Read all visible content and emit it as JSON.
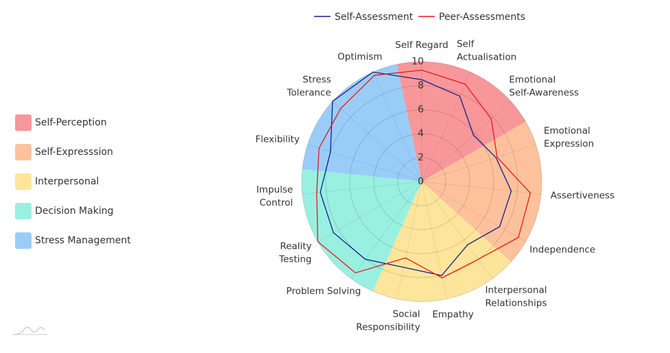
{
  "chart_data": {
    "type": "radar",
    "categories": [
      "Self Regard",
      "Self\nActualisation",
      "Emotional\nSelf-Awareness",
      "Emotional\nExpression",
      "Assertiveness",
      "Independence",
      "Interpersonal\nRelationships",
      "Empathy",
      "Social\nResponsibility",
      "Problem Solving",
      "Reality\nTesting",
      "Impulse\nControl",
      "Flexibility",
      "Stress\nTolerance",
      "Optimism"
    ],
    "series": [
      {
        "name": "Self-Assessment",
        "color": "#1a1a8c",
        "values": [
          8.5,
          7.8,
          5.8,
          6.5,
          7.5,
          7.5,
          6.5,
          8,
          7.3,
          8,
          8.5,
          8.5,
          8,
          10,
          10
        ]
      },
      {
        "name": "Peer-Assessments",
        "color": "#e8161e",
        "values": [
          9.3,
          8.9,
          7.8,
          6.6,
          9.1,
          9.3,
          8,
          8.2,
          6.5,
          9.4,
          10,
          8.8,
          9,
          9.1,
          9.7
        ]
      }
    ],
    "groups": [
      {
        "name": "Self-Perception",
        "color": "#f8979a"
      },
      {
        "name": "Self-Expresssion",
        "color": "#fdc29c"
      },
      {
        "name": "Interpersonal",
        "color": "#fde59b"
      },
      {
        "name": "Decision Making",
        "color": "#99f0e0"
      },
      {
        "name": "Stress Management",
        "color": "#99cdf8"
      }
    ],
    "rlim": [
      0,
      10
    ],
    "rticks": [
      0,
      2,
      4,
      6,
      8,
      10
    ],
    "grid": true
  }
}
